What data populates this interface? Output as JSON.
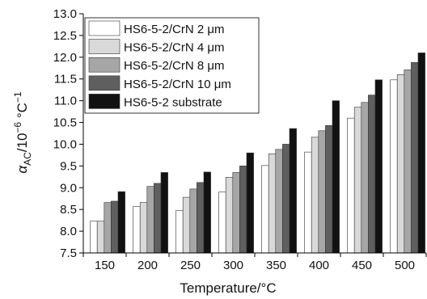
{
  "chart_data": {
    "type": "bar",
    "xlabel": "Temperature/°C",
    "ylabel_parts": {
      "symbol": "α",
      "sub": "AC",
      "mid": "/10",
      "exp1": "−6",
      "unit": " °C",
      "exp2": "−1"
    },
    "categories": [
      "150",
      "200",
      "250",
      "300",
      "350",
      "400",
      "450",
      "500"
    ],
    "ylim": [
      7.5,
      13.0
    ],
    "yticks": [
      "7.5",
      "8.0",
      "8.5",
      "9.0",
      "9.5",
      "10.0",
      "10.5",
      "11.0",
      "11.5",
      "12.0",
      "12.5",
      "13.0"
    ],
    "legend_position": "top-left",
    "grid": false,
    "series": [
      {
        "name": "HS6-5-2/CrN 2 μm",
        "color": "#ffffff",
        "values": [
          8.23,
          8.57,
          8.48,
          8.9,
          9.51,
          9.82,
          10.6,
          11.48
        ]
      },
      {
        "name": "HS6-5-2/CrN 4 μm",
        "color": "#d9d9d9",
        "values": [
          8.23,
          8.66,
          8.78,
          9.24,
          9.78,
          10.16,
          10.85,
          11.6
        ]
      },
      {
        "name": "HS6-5-2/CrN 8 μm",
        "color": "#a6a6a6",
        "values": [
          8.66,
          9.03,
          8.97,
          9.35,
          9.88,
          10.31,
          10.96,
          11.71
        ]
      },
      {
        "name": "HS6-5-2/CrN 10 μm",
        "color": "#5f5f5f",
        "values": [
          8.69,
          9.1,
          9.12,
          9.5,
          10.0,
          10.43,
          11.13,
          11.88
        ]
      },
      {
        "name": "HS6-5-2 substrate",
        "color": "#111111",
        "values": [
          8.91,
          9.35,
          9.36,
          9.8,
          10.36,
          11.0,
          11.48,
          12.1
        ]
      }
    ]
  }
}
